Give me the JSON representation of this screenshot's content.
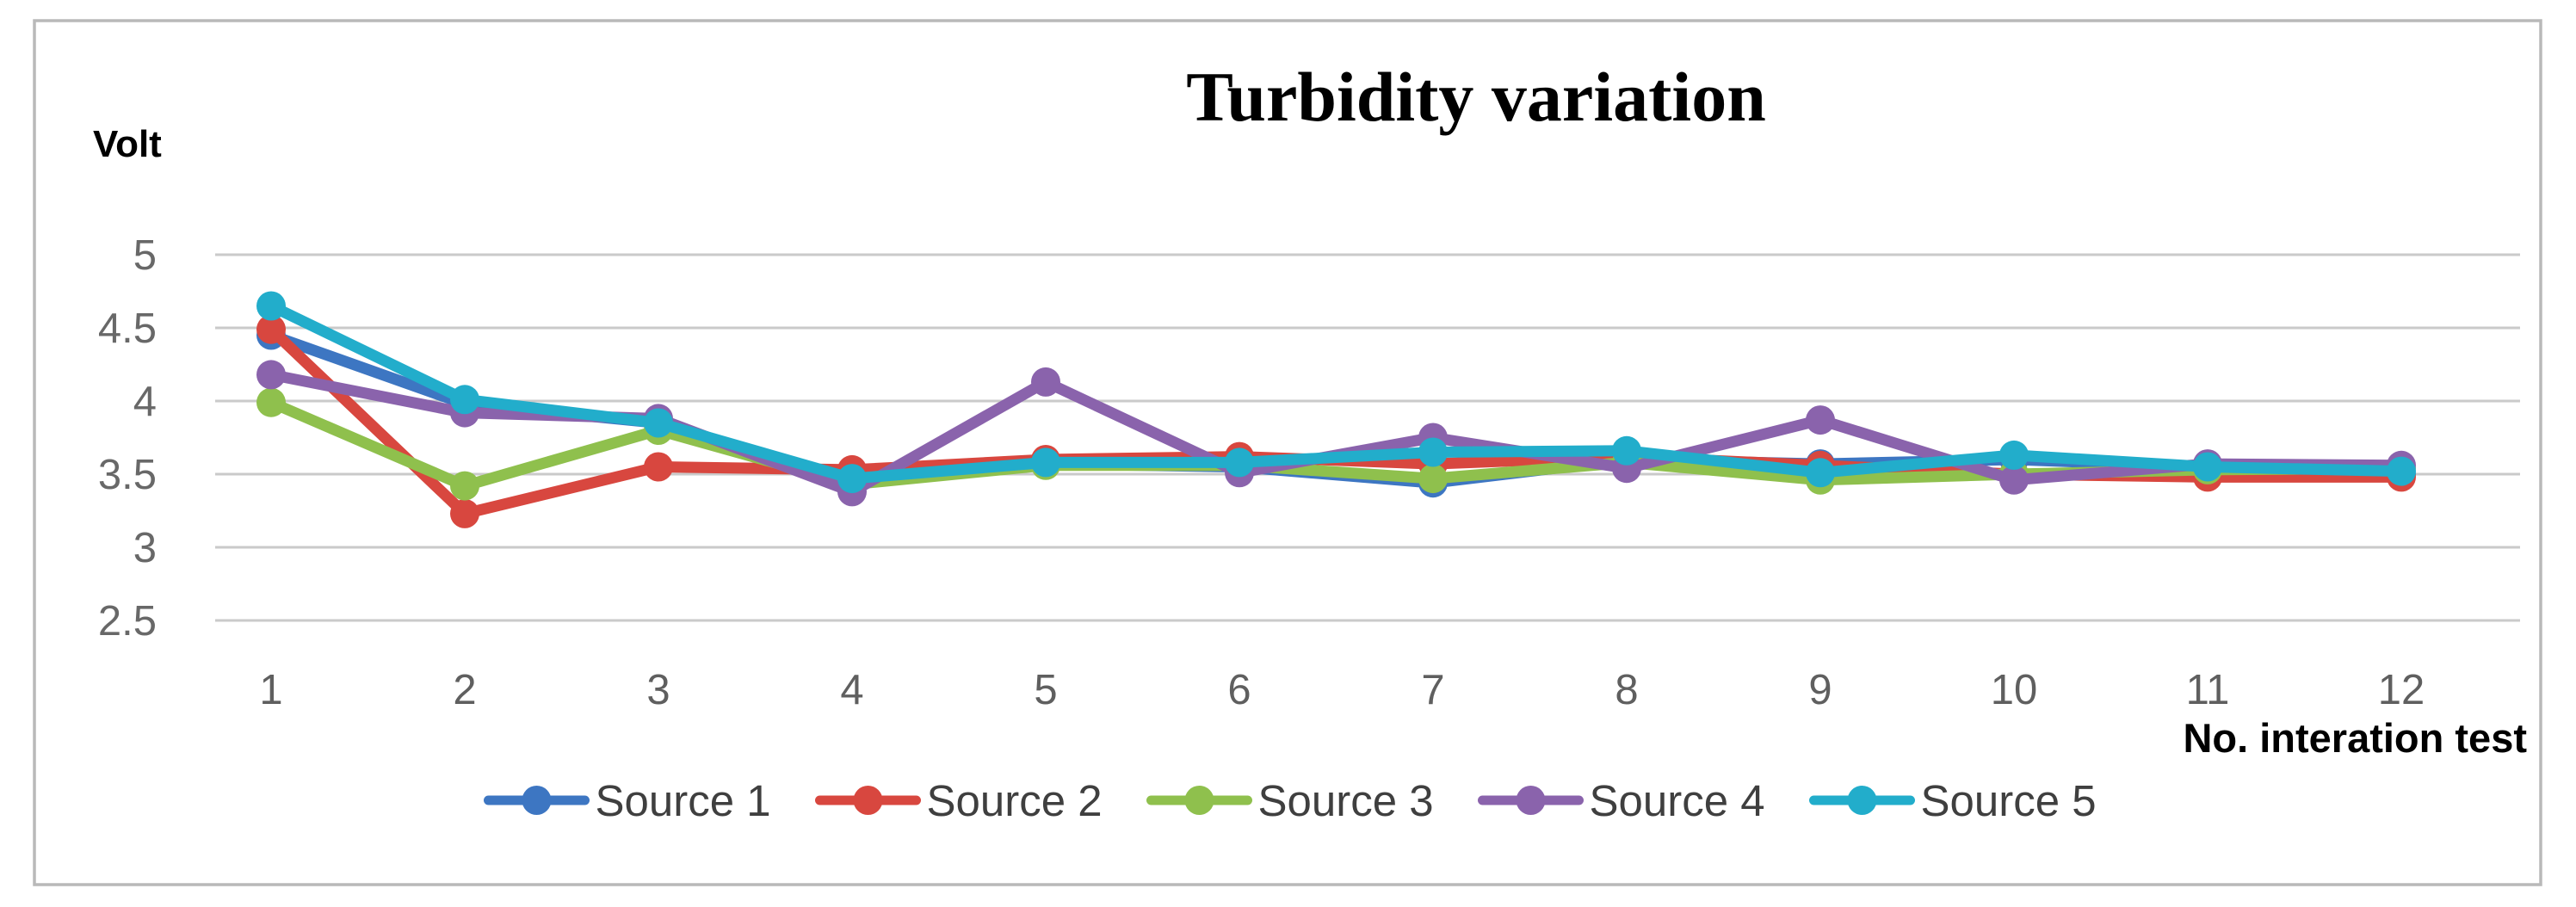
{
  "frame": {
    "border_color": "#b9b9b9",
    "background": "#ffffff"
  },
  "styles": {
    "grid_color": "#cacaca",
    "y_tick_color": "#686868",
    "x_tick_color": "#5f5f5f",
    "title_color": "#0a0a0a",
    "axis_label_color": "#171717",
    "legend_text_color": "#3f3f3f"
  },
  "chart_data": {
    "type": "line",
    "title": "Turbidity variation",
    "ylabel": "Volt",
    "xlabel": "No. interation test",
    "x": [
      "1",
      "2",
      "3",
      "4",
      "5",
      "6",
      "7",
      "8",
      "9",
      "10",
      "11",
      "12"
    ],
    "ylim": [
      2.5,
      5.0
    ],
    "yticks": [
      "5",
      "4.5",
      "4",
      "3.5",
      "3",
      "2.5"
    ],
    "grid": true,
    "legend_position": "bottom-center",
    "marker": "circle",
    "series": [
      {
        "name": "Source 1",
        "color": "#3d76c2",
        "values": [
          4.45,
          3.98,
          3.85,
          3.46,
          3.57,
          3.55,
          3.44,
          3.6,
          3.57,
          3.6,
          3.55,
          3.5
        ]
      },
      {
        "name": "Source 2",
        "color": "#d8473f",
        "values": [
          4.49,
          3.23,
          3.55,
          3.53,
          3.6,
          3.62,
          3.57,
          3.62,
          3.56,
          3.5,
          3.48,
          3.48
        ]
      },
      {
        "name": "Source 3",
        "color": "#8fc04d",
        "values": [
          3.99,
          3.42,
          3.8,
          3.43,
          3.56,
          3.56,
          3.47,
          3.58,
          3.46,
          3.5,
          3.53,
          3.54
        ]
      },
      {
        "name": "Source 4",
        "color": "#8a63ac",
        "values": [
          4.18,
          3.92,
          3.88,
          3.38,
          4.13,
          3.51,
          3.75,
          3.54,
          3.87,
          3.46,
          3.57,
          3.56
        ]
      },
      {
        "name": "Source 5",
        "color": "#22adcb",
        "values": [
          4.65,
          4.01,
          3.85,
          3.47,
          3.58,
          3.58,
          3.65,
          3.66,
          3.51,
          3.63,
          3.55,
          3.52
        ]
      }
    ]
  }
}
